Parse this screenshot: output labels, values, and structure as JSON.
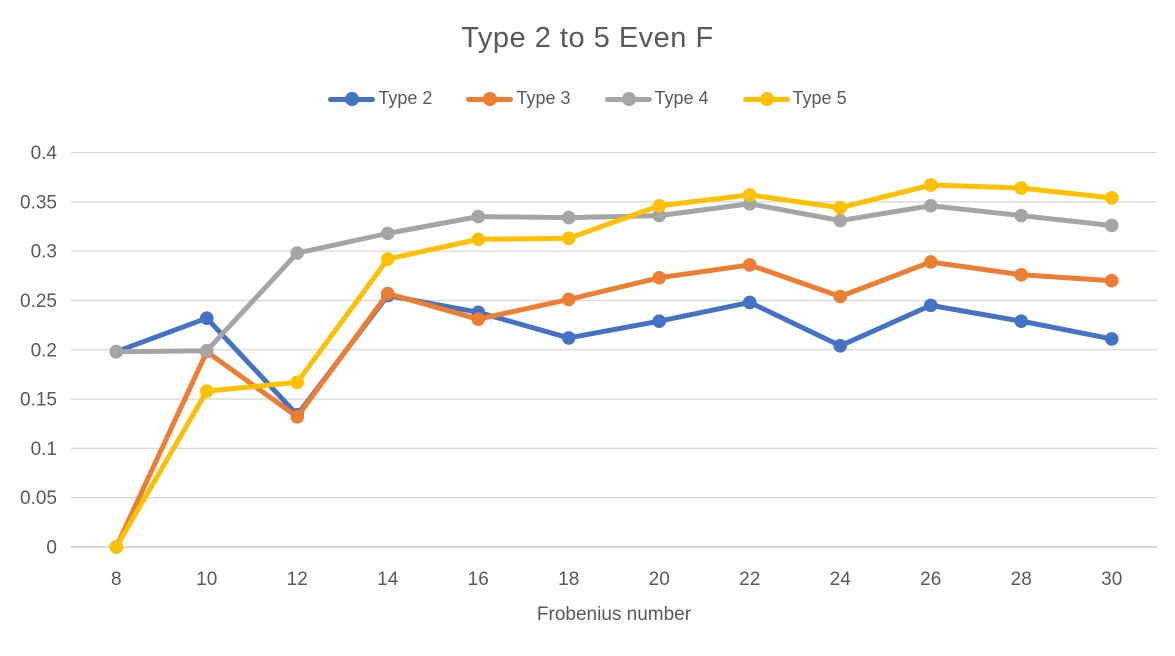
{
  "chart_data": {
    "type": "line",
    "title": "Type 2 to 5 Even F",
    "xlabel": "Frobenius number",
    "ylabel": "",
    "x": [
      8,
      10,
      12,
      14,
      16,
      18,
      20,
      22,
      24,
      26,
      28,
      30
    ],
    "series": [
      {
        "name": "Type 2",
        "color": "#4472C4",
        "values": [
          0.198,
          0.232,
          0.134,
          0.255,
          0.238,
          0.212,
          0.229,
          0.248,
          0.204,
          0.245,
          0.229,
          0.211
        ]
      },
      {
        "name": "Type 3",
        "color": "#ED7D31",
        "values": [
          0.0,
          0.198,
          0.132,
          0.257,
          0.231,
          0.251,
          0.273,
          0.286,
          0.254,
          0.289,
          0.276,
          0.27
        ]
      },
      {
        "name": "Type 4",
        "color": "#A5A5A5",
        "values": [
          0.198,
          0.199,
          0.298,
          0.318,
          0.335,
          0.334,
          0.336,
          0.348,
          0.331,
          0.346,
          0.336,
          0.326
        ]
      },
      {
        "name": "Type 5",
        "color": "#FFC000",
        "values": [
          0.0,
          0.158,
          0.167,
          0.292,
          0.312,
          0.313,
          0.346,
          0.357,
          0.344,
          0.367,
          0.364,
          0.354
        ]
      }
    ],
    "ylim": [
      0,
      0.4
    ],
    "ytick_step": 0.05,
    "ytick_labels": [
      "0",
      "0.05",
      "0.1",
      "0.15",
      "0.2",
      "0.25",
      "0.3",
      "0.35",
      "0.4"
    ],
    "grid": true,
    "legend_position": "top",
    "colors": {
      "text": "#595959",
      "gridline": "#D9D9D9",
      "axis_line": "#BFBFBF",
      "background": "#FFFFFF"
    }
  }
}
